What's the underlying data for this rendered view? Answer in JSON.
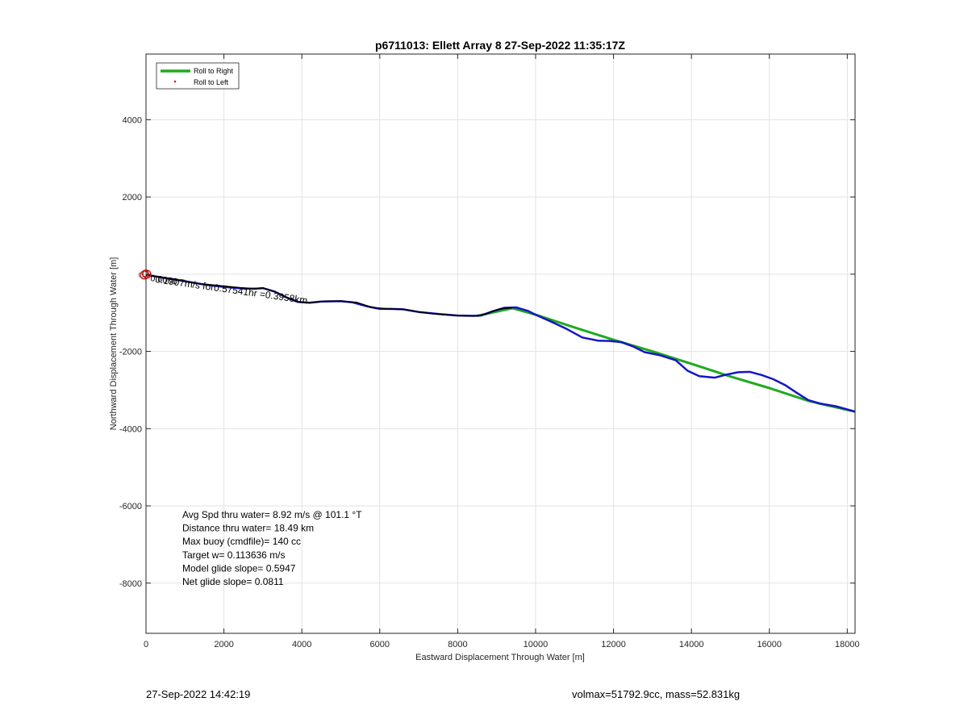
{
  "chart_data": {
    "type": "line",
    "title": "p6711013: Ellett Array 8 27-Sep-2022 11:35:17Z",
    "xlabel": "Eastward Displacement Through Water [m]",
    "ylabel": "Northward Displacement Through Water [m]",
    "xlim": [
      0,
      18200
    ],
    "ylim": [
      -9300,
      5700
    ],
    "xticks": [
      0,
      2000,
      4000,
      6000,
      8000,
      10000,
      12000,
      14000,
      16000,
      18000
    ],
    "yticks": [
      -8000,
      -6000,
      -4000,
      -2000,
      2000,
      4000
    ],
    "grid": true,
    "legend_position": "top-left",
    "legend": [
      "Roll to Right",
      "Roll to Left"
    ],
    "series": [
      {
        "name": "Roll to Right",
        "color": "#1faa1f",
        "x": [
          8500,
          9400,
          10000,
          11000,
          12000,
          13000,
          14000,
          15000,
          16000,
          17000,
          17500,
          18200
        ],
        "y": [
          -1080,
          -880,
          -1050,
          -1380,
          -1700,
          -2000,
          -2320,
          -2650,
          -2950,
          -3280,
          -3400,
          -3560
        ]
      },
      {
        "name": "Roll to Left",
        "color": "#e01010",
        "x": [],
        "y": []
      },
      {
        "name": "",
        "color": "#1515c8",
        "x": [
          0,
          500,
          1000,
          1500,
          2000,
          2500,
          2800,
          3000,
          3300,
          3600,
          3900,
          4200,
          4500,
          5000,
          5300,
          5700,
          6000,
          6300,
          6600,
          7000,
          7500,
          8000,
          8400,
          8600,
          8900,
          9200,
          9500,
          9800,
          10000,
          10400,
          10800,
          11200,
          11600,
          11900,
          12200,
          12500,
          12800,
          13200,
          13600,
          13900,
          14200,
          14600,
          14900,
          15200,
          15500,
          15800,
          16100,
          16400,
          16700,
          17000,
          17300,
          17700,
          18200
        ],
        "y": [
          -20,
          -100,
          -180,
          -270,
          -330,
          -370,
          -380,
          -360,
          -450,
          -600,
          -720,
          -740,
          -710,
          -700,
          -730,
          -840,
          -900,
          -900,
          -910,
          -980,
          -1030,
          -1070,
          -1080,
          -1070,
          -960,
          -870,
          -860,
          -950,
          -1050,
          -1230,
          -1420,
          -1640,
          -1720,
          -1730,
          -1760,
          -1870,
          -2020,
          -2100,
          -2230,
          -2500,
          -2640,
          -2680,
          -2600,
          -2540,
          -2530,
          -2610,
          -2720,
          -2870,
          -3070,
          -3260,
          -3350,
          -3420,
          -3560
        ]
      },
      {
        "name": "",
        "color": "#000000",
        "x": [
          0,
          300,
          600,
          900,
          1200,
          1500,
          1800,
          2100,
          2400,
          2700,
          3000,
          3300,
          3600,
          3900,
          4200,
          4600,
          5000,
          5400,
          5800,
          6200,
          6600,
          7000,
          7400,
          7800,
          8200,
          8500,
          8700,
          8900,
          9100,
          9400
        ],
        "y": [
          -20,
          -60,
          -120,
          -170,
          -220,
          -260,
          -290,
          -320,
          -350,
          -370,
          -360,
          -450,
          -600,
          -720,
          -740,
          -700,
          -700,
          -730,
          -860,
          -900,
          -910,
          -980,
          -1030,
          -1060,
          -1080,
          -1080,
          -1040,
          -960,
          -900,
          -870
        ]
      }
    ],
    "annotations": {
      "path_label": "0.1907m/s for0.57541hr =0.3958km",
      "start_label": "0.0000",
      "stats": [
        "Avg Spd thru water=  8.92 m/s @ 101.1 °T",
        "Distance thru water= 18.49 km",
        "Max buoy (cmdfile)= 140 cc",
        "Target w= 0.113636 m/s",
        "Model glide slope= 0.5947",
        "Net glide slope= 0.0811"
      ]
    }
  },
  "footer": {
    "date": "27-Sep-2022 14:42:19",
    "volmax": "volmax=51792.9cc, mass=52.831kg"
  }
}
